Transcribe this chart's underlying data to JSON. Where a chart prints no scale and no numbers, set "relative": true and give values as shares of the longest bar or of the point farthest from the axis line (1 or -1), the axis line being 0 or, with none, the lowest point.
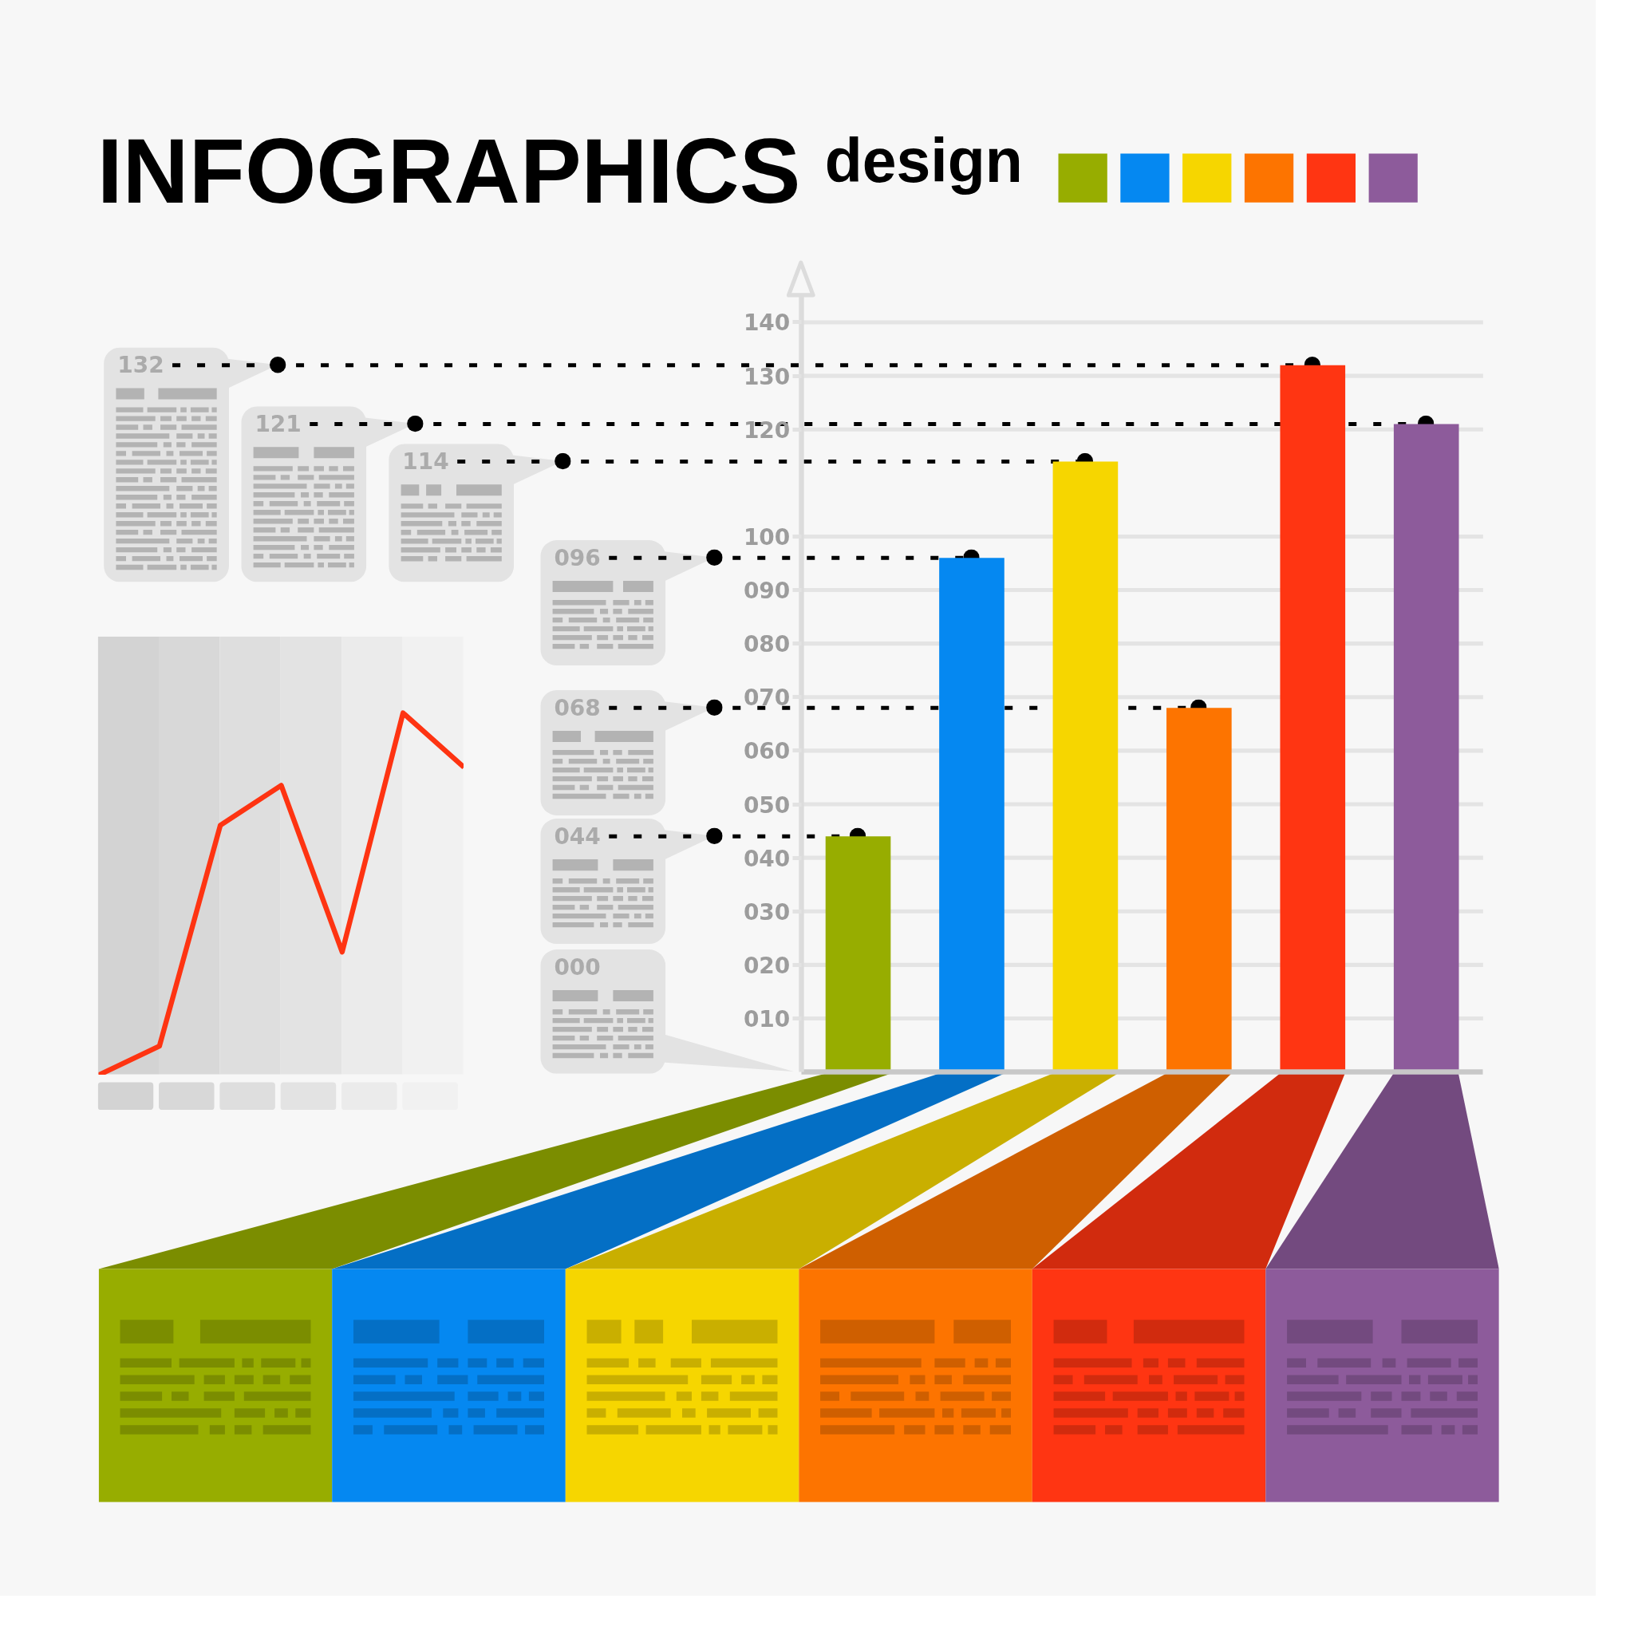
{
  "chart_data": [
    {
      "type": "bar",
      "title": "INFOGRAPHICS",
      "subtitle": "design",
      "categories": [
        null,
        null,
        null,
        null,
        null,
        null
      ],
      "values": [
        44,
        96,
        114,
        68,
        132,
        121
      ],
      "colors": [
        "#97ad00",
        "#0588f1",
        "#f6d600",
        "#fd7400",
        "#ff3512",
        "#8d5b9b"
      ],
      "ylim": [
        0,
        145
      ],
      "yticks": [
        {
          "value": 10,
          "label": "010"
        },
        {
          "value": 20,
          "label": "020"
        },
        {
          "value": 30,
          "label": "030"
        },
        {
          "value": 40,
          "label": "040"
        },
        {
          "value": 50,
          "label": "050"
        },
        {
          "value": 60,
          "label": "060"
        },
        {
          "value": 70,
          "label": "070"
        },
        {
          "value": 80,
          "label": "080"
        },
        {
          "value": 90,
          "label": "090"
        },
        100,
        120,
        130,
        140
      ],
      "grid": "y",
      "tick_labels": "y",
      "ref_lines": [
        {
          "axis": "y",
          "value": 132,
          "label": "132",
          "color": "#000000",
          "line_style": "dotted"
        },
        {
          "axis": "y",
          "value": 121,
          "label": "121",
          "color": "#000000",
          "line_style": "dotted"
        },
        {
          "axis": "y",
          "value": 114,
          "label": "114",
          "color": "#000000",
          "line_style": "dotted"
        },
        {
          "axis": "y",
          "value": 96,
          "label": "096",
          "color": "#000000",
          "line_style": "dotted"
        },
        {
          "axis": "y",
          "value": 68,
          "label": "068",
          "color": "#000000",
          "line_style": "dotted"
        },
        {
          "axis": "y",
          "value": 44,
          "label": "044",
          "color": "#000000",
          "line_style": "dotted"
        }
      ],
      "annotations": [
        "000"
      ]
    },
    {
      "type": "line",
      "relative": true,
      "categories": [
        null,
        null,
        null,
        null,
        null,
        null,
        null
      ],
      "values": [
        0,
        0.08,
        0.69,
        0.8,
        0.34,
        1,
        0.85
      ],
      "color": "#fe3412",
      "tick_labels": false
    }
  ]
}
